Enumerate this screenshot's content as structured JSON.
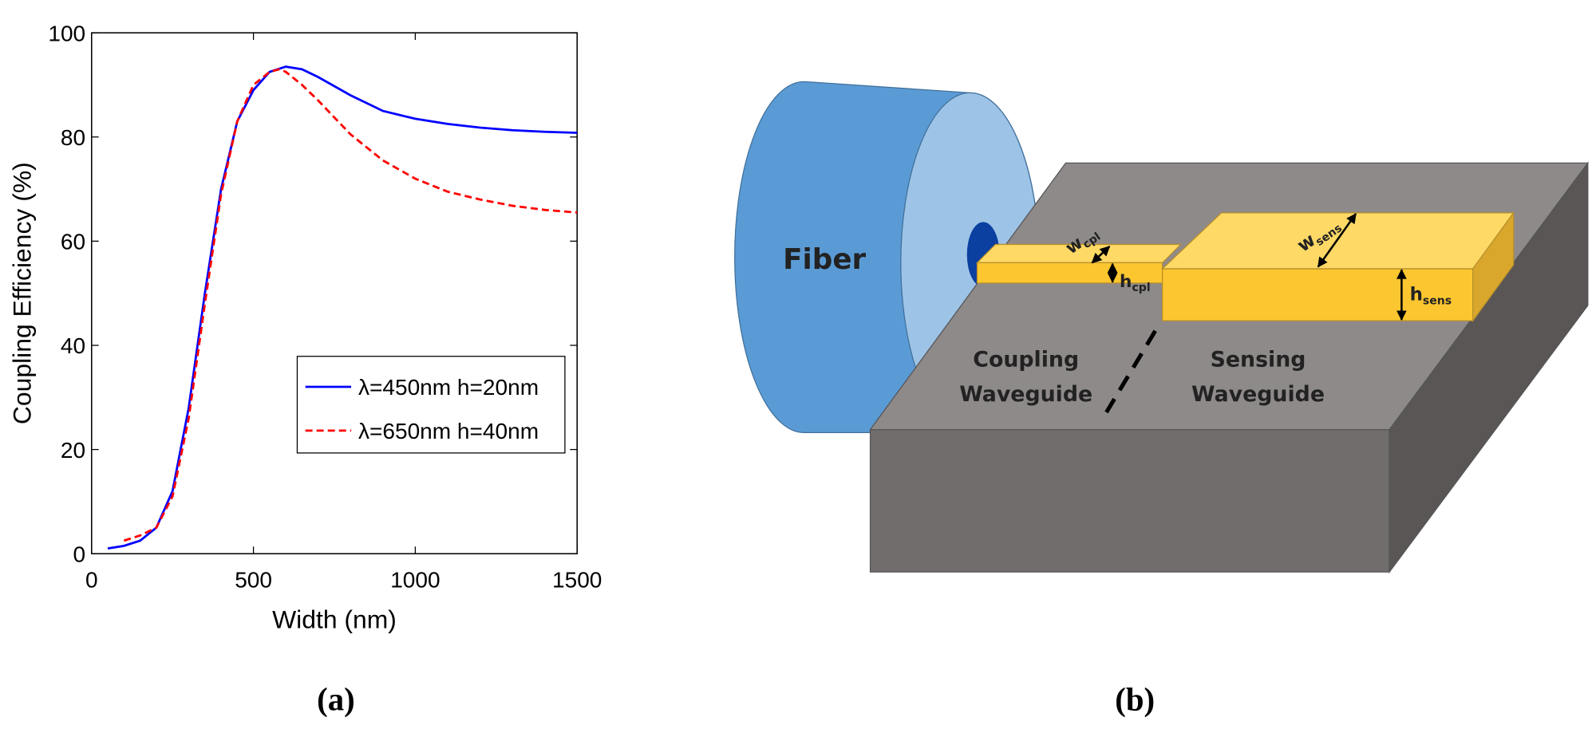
{
  "chart_data": {
    "type": "line",
    "xlabel": "Width (nm)",
    "ylabel": "Coupling Efficiency (%)",
    "xlim": [
      0,
      1500
    ],
    "xticks": [
      0,
      500,
      1000,
      1500
    ],
    "ylim": [
      0,
      100
    ],
    "yticks": [
      0,
      20,
      40,
      60,
      80,
      100
    ],
    "legend": "lower right",
    "series": [
      {
        "name": "λ=450nm h=20nm",
        "color": "#0000ff",
        "style": "solid",
        "x": [
          50,
          100,
          150,
          200,
          250,
          300,
          350,
          400,
          450,
          500,
          550,
          600,
          650,
          700,
          800,
          900,
          1000,
          1100,
          1200,
          1300,
          1400,
          1500
        ],
        "values": [
          1,
          1.5,
          2.5,
          5,
          12,
          28,
          50,
          70,
          83,
          89,
          92.5,
          93.5,
          93,
          91.5,
          88,
          85,
          83.5,
          82.5,
          81.8,
          81.3,
          81,
          80.8
        ]
      },
      {
        "name": "λ=650nm h=40nm",
        "color": "#ff0000",
        "style": "dashed",
        "x": [
          100,
          150,
          200,
          250,
          300,
          350,
          400,
          450,
          500,
          550,
          580,
          600,
          650,
          700,
          800,
          900,
          1000,
          1100,
          1200,
          1300,
          1400,
          1500
        ],
        "values": [
          2.5,
          3.5,
          5,
          11,
          26,
          48,
          69,
          83,
          90,
          92.5,
          93,
          92.5,
          90,
          87,
          80.5,
          75.5,
          72,
          69.5,
          68,
          66.8,
          66,
          65.5
        ]
      }
    ]
  },
  "diagram": {
    "fiber": "Fiber",
    "coupling": [
      "Coupling",
      "Waveguide"
    ],
    "sensing": [
      "Sensing",
      "Waveguide"
    ],
    "w_cpl": {
      "base": "w",
      "sub": "cpl"
    },
    "h_cpl": {
      "base": "h",
      "sub": "cpl"
    },
    "w_sens": {
      "base": "w",
      "sub": "sens"
    },
    "h_sens": {
      "base": "h",
      "sub": "sens"
    }
  },
  "panel_labels": [
    "(a)",
    "(b)"
  ]
}
